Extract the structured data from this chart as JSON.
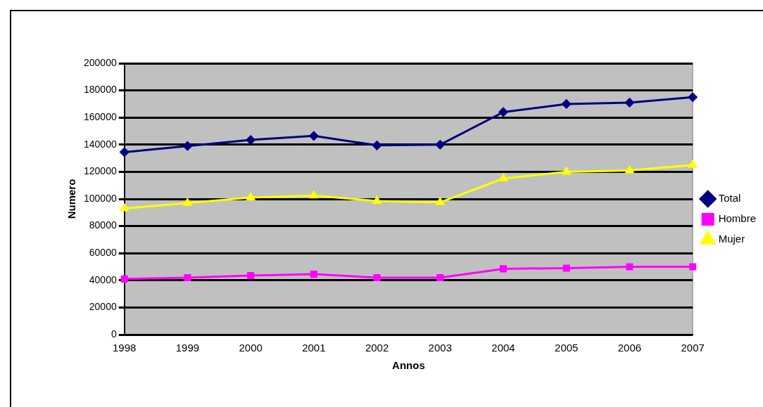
{
  "chart_data": {
    "type": "line",
    "xlabel": "Annos",
    "ylabel": "Numero",
    "categories": [
      "1998",
      "1999",
      "2000",
      "2001",
      "2002",
      "2003",
      "2004",
      "2005",
      "2006",
      "2007"
    ],
    "series": [
      {
        "name": "Total",
        "color": "#000080",
        "marker": "diamond",
        "values": [
          134500,
          139000,
          143500,
          146500,
          139500,
          140000,
          164000,
          170000,
          171000,
          175000
        ]
      },
      {
        "name": "Hombre",
        "color": "#ff00ff",
        "marker": "square",
        "values": [
          41000,
          42000,
          43500,
          44500,
          42000,
          42000,
          48500,
          49000,
          50000,
          50000
        ]
      },
      {
        "name": "Mujer",
        "color": "#ffff00",
        "marker": "triangle",
        "values": [
          93000,
          97000,
          101000,
          102500,
          98500,
          97500,
          115000,
          120000,
          121000,
          125000
        ]
      }
    ],
    "ylim": [
      0,
      200000
    ],
    "yticks": [
      0,
      20000,
      40000,
      60000,
      80000,
      100000,
      120000,
      140000,
      160000,
      180000,
      200000
    ],
    "grid": "y",
    "legend": "right"
  }
}
